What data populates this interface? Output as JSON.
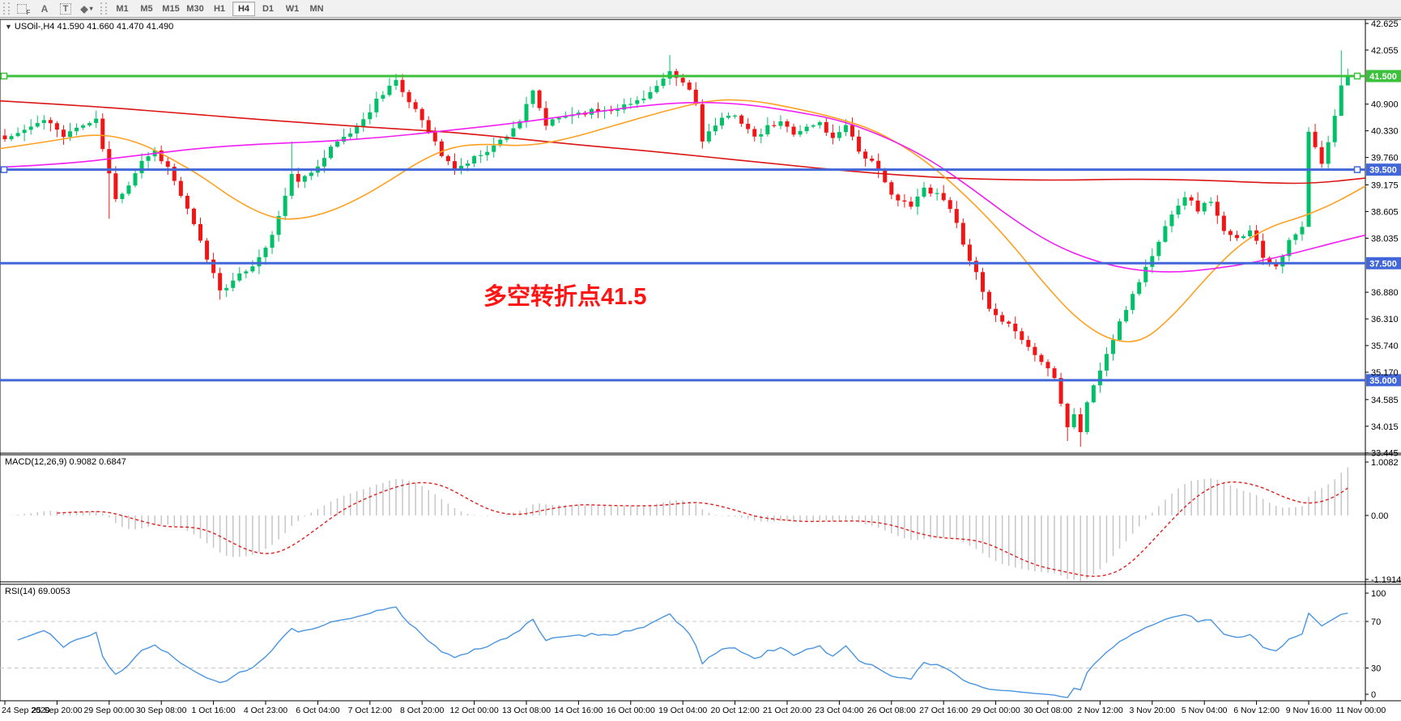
{
  "toolbar": {
    "tools": [
      {
        "id": "fibonacci-tool",
        "label": "F"
      },
      {
        "id": "text-tool",
        "label": "A"
      },
      {
        "id": "text-label-tool",
        "label": "T"
      },
      {
        "id": "arrows-tool",
        "label": "◆",
        "caret": "▾"
      }
    ],
    "timeframes": [
      {
        "label": "M1",
        "active": false
      },
      {
        "label": "M5",
        "active": false
      },
      {
        "label": "M15",
        "active": false
      },
      {
        "label": "M30",
        "active": false
      },
      {
        "label": "H1",
        "active": false
      },
      {
        "label": "H4",
        "active": true
      },
      {
        "label": "D1",
        "active": false
      },
      {
        "label": "W1",
        "active": false
      },
      {
        "label": "MN",
        "active": false
      }
    ]
  },
  "chart": {
    "title_dropdown": "▼",
    "title": "USOil-,H4  41.590 41.660 41.470 41.490",
    "symbol": "USOil-",
    "period": "H4",
    "ohlc": {
      "open": "41.590",
      "high": "41.660",
      "low": "41.470",
      "close": "41.490"
    }
  },
  "annotation": {
    "text": "多空转折点41.5",
    "color": "#FF1414"
  },
  "hlines": [
    {
      "label": "41.500",
      "price": 41.5,
      "color": "#3CC13C",
      "handles": true
    },
    {
      "label": "39.500",
      "price": 39.5,
      "color": "#4267D8",
      "handles": true
    },
    {
      "label": "37.500",
      "price": 37.5,
      "color": "#4267D8",
      "handles": false
    },
    {
      "label": "35.000",
      "price": 35.0,
      "color": "#4267D8",
      "handles": false
    }
  ],
  "price_axis": {
    "labels": [
      "42.625",
      "42.055",
      "40.900",
      "40.330",
      "39.760",
      "39.175",
      "38.605",
      "38.035",
      "36.880",
      "36.310",
      "35.740",
      "35.170",
      "34.585",
      "34.015",
      "33.445"
    ]
  },
  "panels": {
    "macd": {
      "title": "MACD(12,26,9)",
      "values": "0.9082 0.6847",
      "axis": [
        "1.0082",
        "0.00",
        "-1.1914"
      ]
    },
    "rsi": {
      "title": "RSI(14)",
      "values": "69.0053",
      "axis": [
        "100",
        "70",
        "30",
        "0"
      ],
      "levels": [
        70,
        30
      ]
    }
  },
  "time_axis": {
    "labels": [
      "24 Sep 2020",
      "25 Sep 20:00",
      "29 Sep 00:00",
      "30 Sep 08:00",
      "1 Oct 16:00",
      "4 Oct 23:00",
      "6 Oct 04:00",
      "7 Oct 12:00",
      "8 Oct 20:00",
      "12 Oct 00:00",
      "13 Oct 08:00",
      "14 Oct 16:00",
      "16 Oct 00:00",
      "19 Oct 04:00",
      "20 Oct 12:00",
      "21 Oct 20:00",
      "23 Oct 04:00",
      "26 Oct 08:00",
      "27 Oct 16:00",
      "29 Oct 00:00",
      "30 Oct 08:00",
      "2 Nov 12:00",
      "3 Nov 20:00",
      "5 Nov 04:00",
      "6 Nov 12:00",
      "9 Nov 16:00",
      "11 Nov 00:00"
    ]
  },
  "colors": {
    "up": "#00C167",
    "down": "#F21515",
    "ma_red": "#DC1414",
    "ma_orange": "#FFA020",
    "ma_magenta": "#F21EF2",
    "hline_green": "#3CC13C",
    "hline_blue": "#4267D8",
    "macd_bar": "#C6C6C6",
    "macd_signal": "#E02020",
    "rsi_line": "#4A95E0",
    "level_dash": "#C8C8C8",
    "axis_text": "#000000"
  },
  "chart_data": {
    "type": "candlestick",
    "symbol": "USOil-",
    "period": "H4",
    "title": "USOil-,H4",
    "price_range": [
      33.44,
      42.72
    ],
    "n_candles": 207,
    "last_candle": {
      "open": 41.59,
      "high": 41.66,
      "low": 41.47,
      "close": 41.49
    },
    "close_anchors": [
      [
        0,
        40.15
      ],
      [
        3,
        40.35
      ],
      [
        6,
        40.55
      ],
      [
        9,
        40.25
      ],
      [
        12,
        40.45
      ],
      [
        14,
        40.55
      ],
      [
        15,
        39.95
      ],
      [
        17,
        38.85
      ],
      [
        19,
        39.2
      ],
      [
        21,
        39.7
      ],
      [
        23,
        39.9
      ],
      [
        25,
        39.55
      ],
      [
        27,
        38.95
      ],
      [
        29,
        38.3
      ],
      [
        31,
        37.6
      ],
      [
        33,
        36.95
      ],
      [
        35,
        37.1
      ],
      [
        37,
        37.35
      ],
      [
        39,
        37.6
      ],
      [
        41,
        38.1
      ],
      [
        43,
        38.9
      ],
      [
        44,
        39.45
      ],
      [
        45,
        39.2
      ],
      [
        47,
        39.45
      ],
      [
        49,
        39.8
      ],
      [
        51,
        40.1
      ],
      [
        53,
        40.3
      ],
      [
        55,
        40.55
      ],
      [
        57,
        41.0
      ],
      [
        59,
        41.3
      ],
      [
        60,
        41.4
      ],
      [
        61,
        41.1
      ],
      [
        63,
        40.8
      ],
      [
        65,
        40.35
      ],
      [
        67,
        39.8
      ],
      [
        69,
        39.5
      ],
      [
        71,
        39.65
      ],
      [
        73,
        39.85
      ],
      [
        75,
        40.0
      ],
      [
        77,
        40.25
      ],
      [
        79,
        40.55
      ],
      [
        81,
        41.15
      ],
      [
        82,
        40.8
      ],
      [
        83,
        40.45
      ],
      [
        85,
        40.6
      ],
      [
        87,
        40.7
      ],
      [
        90,
        40.75
      ],
      [
        93,
        40.8
      ],
      [
        96,
        40.9
      ],
      [
        99,
        41.15
      ],
      [
        101,
        41.4
      ],
      [
        102,
        41.55
      ],
      [
        103,
        41.45
      ],
      [
        104,
        41.35
      ],
      [
        105,
        41.2
      ],
      [
        106,
        40.9
      ],
      [
        107,
        40.15
      ],
      [
        108,
        40.3
      ],
      [
        110,
        40.55
      ],
      [
        112,
        40.7
      ],
      [
        114,
        40.35
      ],
      [
        115,
        40.15
      ],
      [
        117,
        40.4
      ],
      [
        119,
        40.5
      ],
      [
        121,
        40.3
      ],
      [
        123,
        40.4
      ],
      [
        125,
        40.5
      ],
      [
        127,
        40.15
      ],
      [
        129,
        40.5
      ],
      [
        131,
        39.9
      ],
      [
        133,
        39.65
      ],
      [
        135,
        39.2
      ],
      [
        137,
        38.85
      ],
      [
        139,
        38.7
      ],
      [
        141,
        39.1
      ],
      [
        143,
        39.0
      ],
      [
        145,
        38.7
      ],
      [
        147,
        37.95
      ],
      [
        149,
        37.25
      ],
      [
        151,
        36.5
      ],
      [
        153,
        36.2
      ],
      [
        155,
        36.1
      ],
      [
        157,
        35.7
      ],
      [
        159,
        35.4
      ],
      [
        161,
        35.1
      ],
      [
        162,
        34.55
      ],
      [
        163,
        34.0
      ],
      [
        164,
        34.3
      ],
      [
        165,
        33.9
      ],
      [
        166,
        34.5
      ],
      [
        167,
        34.9
      ],
      [
        169,
        35.55
      ],
      [
        171,
        36.2
      ],
      [
        173,
        36.85
      ],
      [
        175,
        37.4
      ],
      [
        177,
        37.95
      ],
      [
        179,
        38.6
      ],
      [
        181,
        38.95
      ],
      [
        183,
        38.65
      ],
      [
        185,
        38.85
      ],
      [
        187,
        38.15
      ],
      [
        189,
        38.0
      ],
      [
        191,
        38.25
      ],
      [
        193,
        37.65
      ],
      [
        195,
        37.45
      ],
      [
        197,
        37.95
      ],
      [
        199,
        38.25
      ],
      [
        200,
        40.3
      ],
      [
        201,
        39.95
      ],
      [
        202,
        39.6
      ],
      [
        203,
        40.1
      ],
      [
        204,
        40.65
      ],
      [
        205,
        41.3
      ],
      [
        206,
        41.49
      ]
    ],
    "wick_overrides": {
      "16": {
        "l": 38.45
      },
      "33": {
        "l": 36.72
      },
      "44": {
        "h": 40.1
      },
      "60": {
        "h": 41.55
      },
      "102": {
        "h": 41.95
      },
      "107": {
        "l": 39.95
      },
      "163": {
        "l": 33.7
      },
      "165": {
        "l": 33.58
      },
      "200": {
        "l": 38.3
      },
      "205": {
        "h": 42.05,
        "l": 41.25
      },
      "206": {
        "h": 41.66,
        "l": 41.4
      }
    },
    "moving_averages": [
      {
        "name": "ma-slow-red",
        "color": "#DC1414",
        "width": 1.6,
        "points": [
          [
            0,
            40.97
          ],
          [
            120,
            40.85
          ],
          [
            240,
            40.68
          ],
          [
            360,
            40.52
          ],
          [
            480,
            40.38
          ],
          [
            560,
            40.3
          ],
          [
            640,
            40.16
          ],
          [
            720,
            40.02
          ],
          [
            800,
            39.9
          ],
          [
            880,
            39.76
          ],
          [
            960,
            39.62
          ],
          [
            1040,
            39.48
          ],
          [
            1120,
            39.37
          ],
          [
            1200,
            39.3
          ],
          [
            1300,
            39.27
          ],
          [
            1400,
            39.3
          ],
          [
            1480,
            39.28
          ],
          [
            1560,
            39.22
          ],
          [
            1620,
            39.2
          ],
          [
            1686,
            39.32
          ]
        ]
      },
      {
        "name": "ma-mid-orange",
        "color": "#FFA020",
        "width": 1.6,
        "points": [
          [
            0,
            39.95
          ],
          [
            60,
            40.1
          ],
          [
            120,
            40.28
          ],
          [
            170,
            40.1
          ],
          [
            210,
            39.75
          ],
          [
            250,
            39.35
          ],
          [
            290,
            38.85
          ],
          [
            330,
            38.5
          ],
          [
            360,
            38.42
          ],
          [
            400,
            38.55
          ],
          [
            440,
            38.85
          ],
          [
            480,
            39.25
          ],
          [
            520,
            39.7
          ],
          [
            560,
            40.0
          ],
          [
            600,
            40.05
          ],
          [
            650,
            40.0
          ],
          [
            700,
            40.15
          ],
          [
            760,
            40.45
          ],
          [
            820,
            40.75
          ],
          [
            880,
            41.0
          ],
          [
            930,
            40.98
          ],
          [
            980,
            40.82
          ],
          [
            1030,
            40.62
          ],
          [
            1080,
            40.35
          ],
          [
            1130,
            39.85
          ],
          [
            1170,
            39.3
          ],
          [
            1210,
            38.65
          ],
          [
            1250,
            37.9
          ],
          [
            1290,
            37.05
          ],
          [
            1330,
            36.3
          ],
          [
            1370,
            35.85
          ],
          [
            1410,
            35.8
          ],
          [
            1450,
            36.4
          ],
          [
            1490,
            37.2
          ],
          [
            1530,
            37.9
          ],
          [
            1570,
            38.3
          ],
          [
            1610,
            38.5
          ],
          [
            1650,
            38.8
          ],
          [
            1686,
            39.15
          ]
        ]
      },
      {
        "name": "ma-slow-magenta",
        "color": "#F21EF2",
        "width": 1.6,
        "points": [
          [
            0,
            39.55
          ],
          [
            80,
            39.62
          ],
          [
            160,
            39.78
          ],
          [
            240,
            39.95
          ],
          [
            320,
            40.05
          ],
          [
            400,
            40.1
          ],
          [
            480,
            40.2
          ],
          [
            560,
            40.35
          ],
          [
            640,
            40.5
          ],
          [
            720,
            40.7
          ],
          [
            800,
            40.88
          ],
          [
            860,
            40.95
          ],
          [
            920,
            40.9
          ],
          [
            980,
            40.75
          ],
          [
            1040,
            40.55
          ],
          [
            1100,
            40.15
          ],
          [
            1150,
            39.7
          ],
          [
            1200,
            39.1
          ],
          [
            1250,
            38.45
          ],
          [
            1300,
            37.9
          ],
          [
            1350,
            37.55
          ],
          [
            1400,
            37.35
          ],
          [
            1450,
            37.3
          ],
          [
            1500,
            37.38
          ],
          [
            1550,
            37.52
          ],
          [
            1600,
            37.72
          ],
          [
            1650,
            37.95
          ],
          [
            1686,
            38.1
          ]
        ]
      }
    ],
    "indicators": {
      "macd": {
        "params": [
          12,
          26,
          9
        ],
        "current": [
          0.9082,
          0.6847
        ],
        "range": [
          -1.1914,
          1.0082
        ]
      },
      "rsi": {
        "period": 14,
        "current": 69.0053,
        "levels": [
          70,
          30
        ],
        "range": [
          0,
          100
        ]
      }
    }
  }
}
